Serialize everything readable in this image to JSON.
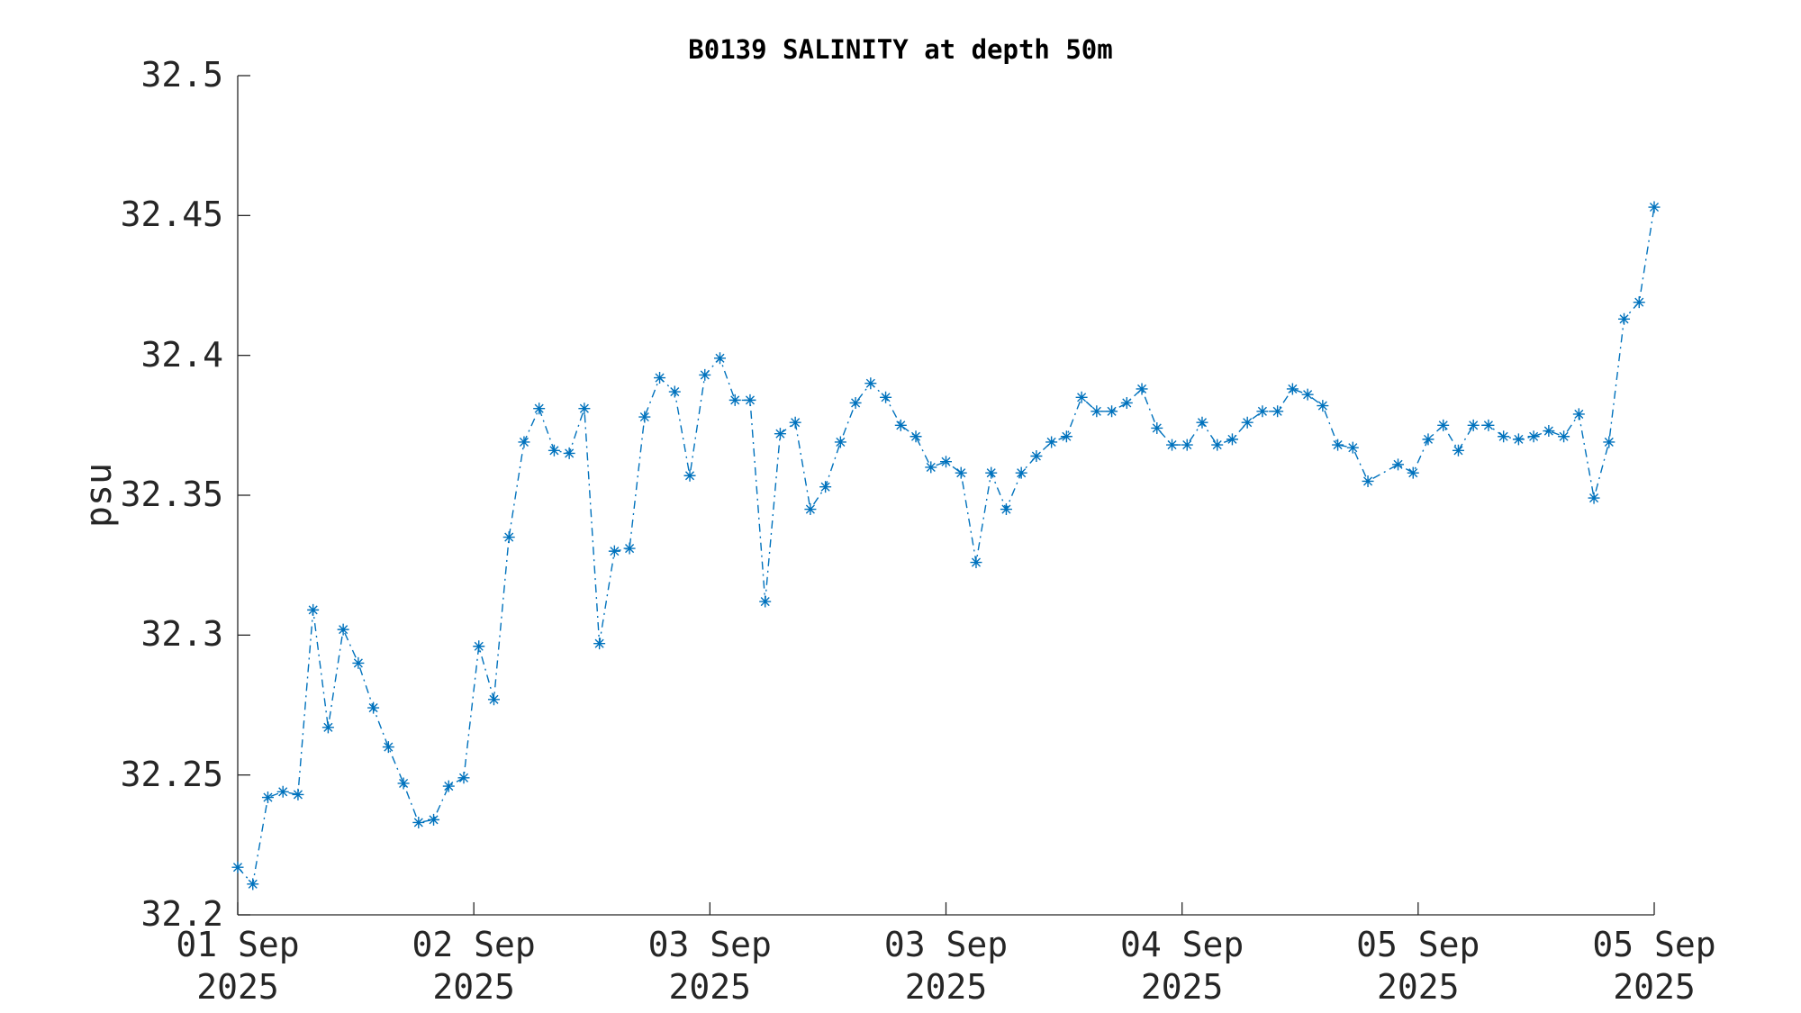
{
  "chart_data": {
    "type": "line",
    "title": "B0139 SALINITY at depth 50m",
    "ylabel": "psu",
    "x": [
      0,
      1,
      2,
      3,
      4,
      5,
      6,
      7,
      8,
      9,
      10,
      11,
      12,
      13,
      14,
      15,
      16,
      17,
      18,
      19,
      20,
      21,
      22,
      23,
      24,
      25,
      26,
      27,
      28,
      29,
      30,
      31,
      32,
      33,
      34,
      35,
      36,
      37,
      38,
      39,
      40,
      41,
      42,
      43,
      44,
      45,
      46,
      47,
      48,
      49,
      50,
      51,
      52,
      53,
      54,
      55,
      56,
      57,
      58,
      59,
      60,
      61,
      62,
      63,
      64,
      65,
      66,
      67,
      68,
      69,
      70,
      71,
      72,
      73,
      74,
      75,
      77,
      78,
      79,
      80,
      81,
      82,
      83,
      84,
      85,
      86,
      87,
      88,
      89,
      90,
      91,
      92,
      93,
      94
    ],
    "series": [
      {
        "name": "salinity",
        "color": "#0072BD",
        "values": [
          32.217,
          32.211,
          32.242,
          32.244,
          32.243,
          32.309,
          32.267,
          32.302,
          32.29,
          32.274,
          32.26,
          32.247,
          32.233,
          32.234,
          32.246,
          32.249,
          32.296,
          32.277,
          32.335,
          32.369,
          32.381,
          32.366,
          32.365,
          32.381,
          32.297,
          32.33,
          32.331,
          32.378,
          32.392,
          32.387,
          32.357,
          32.393,
          32.399,
          32.384,
          32.384,
          32.312,
          32.372,
          32.376,
          32.345,
          32.353,
          32.369,
          32.383,
          32.39,
          32.385,
          32.375,
          32.371,
          32.36,
          32.362,
          32.358,
          32.326,
          32.358,
          32.345,
          32.358,
          32.364,
          32.369,
          32.371,
          32.385,
          32.38,
          32.38,
          32.383,
          32.388,
          32.374,
          32.368,
          32.368,
          32.376,
          32.368,
          32.37,
          32.376,
          32.38,
          32.38,
          32.388,
          32.386,
          32.382,
          32.368,
          32.367,
          32.355,
          32.361,
          32.358,
          32.37,
          32.375,
          32.366,
          32.375,
          32.375,
          32.371,
          32.37,
          32.371,
          32.373,
          32.371,
          32.379,
          32.349,
          32.369,
          32.413,
          32.419,
          32.453
        ]
      }
    ],
    "xlim": [
      0,
      94
    ],
    "xticks": [
      {
        "value": 0,
        "label": "01 Sep\n2025"
      },
      {
        "value": 15.667,
        "label": "02 Sep\n2025"
      },
      {
        "value": 31.333,
        "label": "03 Sep\n2025"
      },
      {
        "value": 47,
        "label": "03 Sep\n2025"
      },
      {
        "value": 62.667,
        "label": "04 Sep\n2025"
      },
      {
        "value": 78.333,
        "label": "05 Sep\n2025"
      },
      {
        "value": 94,
        "label": "05 Sep\n2025"
      }
    ],
    "ylim": [
      32.2,
      32.5
    ],
    "yticks": [
      32.2,
      32.25,
      32.3,
      32.35,
      32.4,
      32.45,
      32.5
    ]
  }
}
